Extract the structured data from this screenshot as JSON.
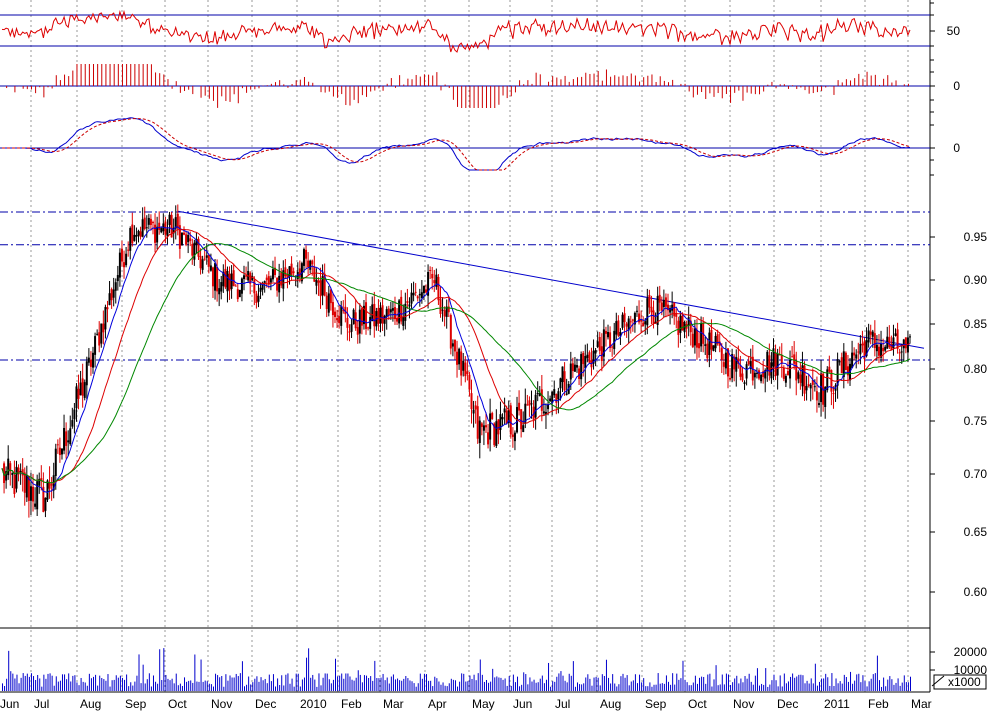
{
  "chart_data": [
    {
      "panel": "rsi",
      "type": "line",
      "y_ticks": [
        {
          "value": "50"
        }
      ],
      "reference_lines": [
        63,
        37
      ]
    },
    {
      "panel": "momentum-histogram",
      "type": "bar",
      "y_ticks": [
        {
          "value": "0"
        }
      ]
    },
    {
      "panel": "oscillator",
      "type": "line",
      "y_ticks": [
        {
          "value": "0"
        }
      ]
    },
    {
      "panel": "price",
      "type": "candlestick",
      "ylim": [
        0.58,
        1.0
      ],
      "y_ticks": [
        {
          "label": "0.95",
          "value": 0.95
        },
        {
          "label": "0.90",
          "value": 0.9
        },
        {
          "label": "0.85",
          "value": 0.85
        },
        {
          "label": "0.80",
          "value": 0.8
        },
        {
          "label": "0.75",
          "value": 0.75
        },
        {
          "label": "0.70",
          "value": 0.7
        },
        {
          "label": "0.65",
          "value": 0.65
        },
        {
          "label": "0.60",
          "value": 0.6
        }
      ],
      "horizontal_levels": [
        0.979,
        0.941,
        0.81
      ],
      "trendline": {
        "from_month": "Oct",
        "from_value": 0.98,
        "to_month": "Mar",
        "to_value": 0.823
      },
      "moving_averages": [
        {
          "color": "#0000dd"
        },
        {
          "color": "#dd0000"
        },
        {
          "color": "#008800"
        }
      ],
      "approx_close_path": [
        {
          "month": "Jun",
          "value": 0.7
        },
        {
          "month": "Jul",
          "value": 0.68
        },
        {
          "month": "Aug",
          "value": 0.8
        },
        {
          "month": "Sep",
          "value": 0.96
        },
        {
          "month": "Oct",
          "value": 0.96
        },
        {
          "month": "Nov",
          "value": 0.9
        },
        {
          "month": "Dec",
          "value": 0.89
        },
        {
          "month": "2010",
          "value": 0.92
        },
        {
          "month": "Feb",
          "value": 0.85
        },
        {
          "month": "Mar",
          "value": 0.86
        },
        {
          "month": "Apr",
          "value": 0.9
        },
        {
          "month": "May",
          "value": 0.74
        },
        {
          "month": "Jun",
          "value": 0.75
        },
        {
          "month": "Jul",
          "value": 0.79
        },
        {
          "month": "Aug",
          "value": 0.83
        },
        {
          "month": "Sep",
          "value": 0.87
        },
        {
          "month": "Oct",
          "value": 0.84
        },
        {
          "month": "Nov",
          "value": 0.8
        },
        {
          "month": "Dec",
          "value": 0.81
        },
        {
          "month": "2011",
          "value": 0.78
        },
        {
          "month": "Feb",
          "value": 0.83
        },
        {
          "month": "Mar",
          "value": 0.82
        }
      ]
    },
    {
      "panel": "volume",
      "type": "bar",
      "y_ticks": [
        {
          "label": "20000"
        },
        {
          "label": "10000"
        }
      ],
      "unit_label": "x1000"
    }
  ],
  "x_axis": {
    "months": [
      {
        "label": "Jun"
      },
      {
        "label": "Jul"
      },
      {
        "label": "Aug"
      },
      {
        "label": "Sep"
      },
      {
        "label": "Oct"
      },
      {
        "label": "Nov"
      },
      {
        "label": "Dec"
      },
      {
        "label": "2010"
      },
      {
        "label": "Feb"
      },
      {
        "label": "Mar"
      },
      {
        "label": "Apr"
      },
      {
        "label": "May"
      },
      {
        "label": "Jun"
      },
      {
        "label": "Jul"
      },
      {
        "label": "Aug"
      },
      {
        "label": "Sep"
      },
      {
        "label": "Oct"
      },
      {
        "label": "Nov"
      },
      {
        "label": "Dec"
      },
      {
        "label": "2011"
      },
      {
        "label": "Feb"
      },
      {
        "label": "Mar"
      }
    ]
  },
  "colors": {
    "candle_up": "#000000",
    "candle_down": "#dd0000",
    "rsi_line": "#dd0000",
    "histogram": "#cc0000",
    "osc_line1": "#0000cc",
    "osc_line2": "#cc0000",
    "volume": "#0000cc",
    "grid": "#999999",
    "ref_line": "#0000aa"
  }
}
